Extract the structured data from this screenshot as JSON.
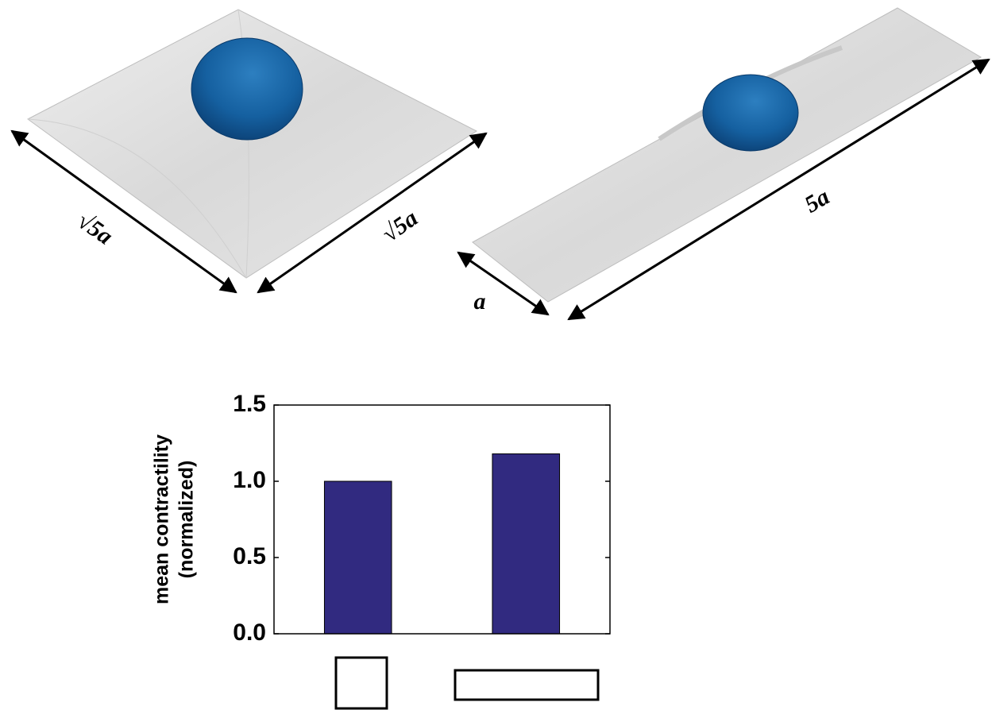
{
  "chart_data": {
    "type": "bar",
    "ylabel": [
      "mean contractility",
      "(normalized)"
    ],
    "categories": [
      null,
      null
    ],
    "values": [
      1.0,
      1.18
    ],
    "color": "#312a80",
    "ylim": [
      0,
      1.5
    ],
    "yticks": [
      {
        "value": 0,
        "label": "0.0"
      },
      0.5,
      {
        "value": 1,
        "label": "1.0"
      },
      1.5
    ],
    "grid": false
  },
  "illustrations": {
    "square": {
      "left_side": "√5a",
      "right_side": "√5a"
    },
    "strip": {
      "width": "a",
      "length": "5a"
    }
  }
}
